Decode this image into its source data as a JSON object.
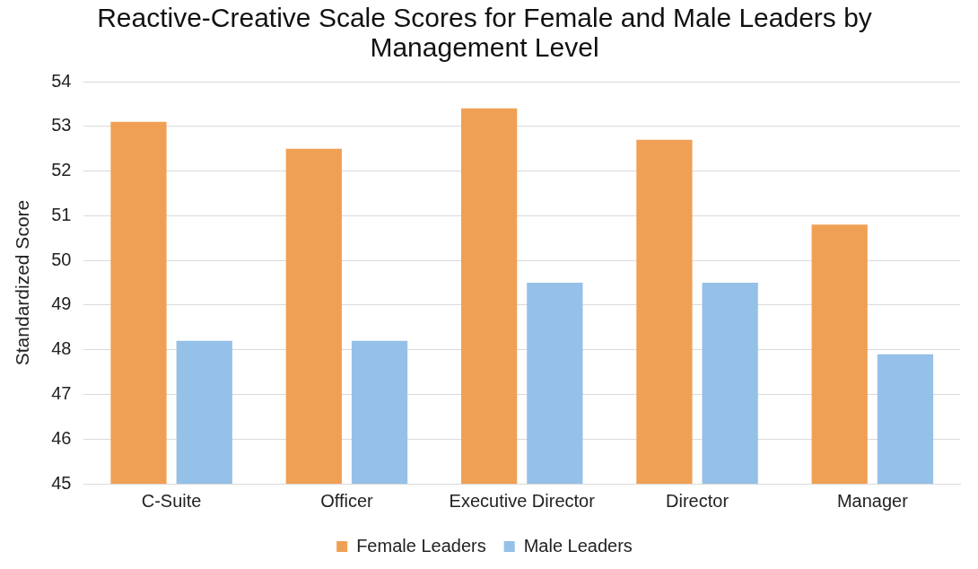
{
  "chart_data": {
    "type": "bar",
    "title": "Reactive-Creative Scale Scores for Female and Male Leaders by Management Level",
    "ylabel": "Standardized Score",
    "categories": [
      "C-Suite",
      "Officer",
      "Executive Director",
      "Director",
      "Manager"
    ],
    "series": [
      {
        "name": "Female Leaders",
        "color": "#f0a054",
        "values": [
          53.1,
          52.5,
          53.4,
          52.7,
          50.8
        ]
      },
      {
        "name": "Male Leaders",
        "color": "#95c0e8",
        "values": [
          48.2,
          48.2,
          49.5,
          49.5,
          47.9
        ]
      }
    ],
    "ylim": [
      45,
      54
    ],
    "yticks": [
      45,
      46,
      47,
      48,
      49,
      50,
      51,
      52,
      53,
      54
    ],
    "grid": "y",
    "legend": "bottom"
  }
}
